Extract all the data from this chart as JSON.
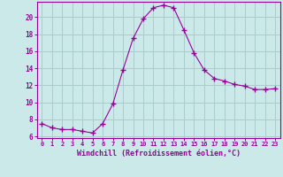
{
  "x": [
    0,
    1,
    2,
    3,
    4,
    5,
    6,
    7,
    8,
    9,
    10,
    11,
    12,
    13,
    14,
    15,
    16,
    17,
    18,
    19,
    20,
    21,
    22,
    23
  ],
  "y": [
    7.5,
    7.0,
    6.8,
    6.8,
    6.6,
    6.4,
    7.5,
    9.8,
    13.8,
    17.5,
    19.8,
    21.1,
    21.4,
    21.1,
    18.5,
    15.8,
    13.8,
    12.8,
    12.5,
    12.1,
    11.9,
    11.5,
    11.5,
    11.6
  ],
  "line_color": "#990099",
  "marker": "+",
  "marker_size": 4,
  "bg_color": "#cce9e9",
  "grid_color": "#aacccc",
  "xlabel": "Windchill (Refroidissement éolien,°C)",
  "xlabel_color": "#990099",
  "tick_color": "#990099",
  "ylabel_ticks": [
    6,
    8,
    10,
    12,
    14,
    16,
    18,
    20
  ],
  "xlim": [
    -0.5,
    23.5
  ],
  "ylim": [
    5.8,
    21.8
  ],
  "title": ""
}
